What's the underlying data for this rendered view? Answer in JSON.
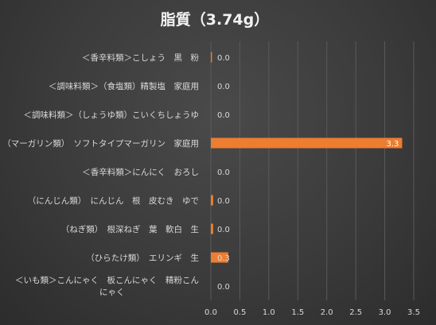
{
  "chart_data": {
    "type": "bar",
    "orientation": "horizontal",
    "title": "脂質（3.74g）",
    "categories": [
      "＜香辛料類＞こしょう　黒　粉",
      "＜調味料類＞（食塩類）精製塩　家庭用",
      "＜調味料類＞（しょうゆ類）こいくちしょうゆ",
      "（マーガリン類）　ソフトタイプマーガリン　家庭用",
      "＜香辛料類＞にんにく　おろし",
      "（にんじん類）　にんじん　根　皮むき　ゆで",
      "（ねぎ類）　根深ねぎ　葉　軟白　生",
      "（ひらたけ類）　エリンギ　生",
      "＜いも類＞こんにゃく　板こんにゃく　精粉こん|にゃく"
    ],
    "values": [
      0.02,
      0.0,
      0.0,
      3.3,
      0.0,
      0.04,
      0.04,
      0.3,
      0.0
    ],
    "data_labels": [
      "0.0",
      "0.0",
      "0.0",
      "3.3",
      "0.0",
      "0.0",
      "0.0",
      "0.3",
      "0.0"
    ],
    "xlim": [
      0,
      3.5
    ],
    "x_ticks": [
      "0.0",
      "0.5",
      "1.0",
      "1.5",
      "2.0",
      "2.5",
      "3.0",
      "3.5"
    ],
    "grid": true,
    "legend": "none",
    "colors": {
      "bar": "#ed7d31",
      "grid": "#5a5a5a",
      "text": "#d9d9d9",
      "title": "#f2f2f2",
      "inside_label": "#ffffff"
    }
  }
}
